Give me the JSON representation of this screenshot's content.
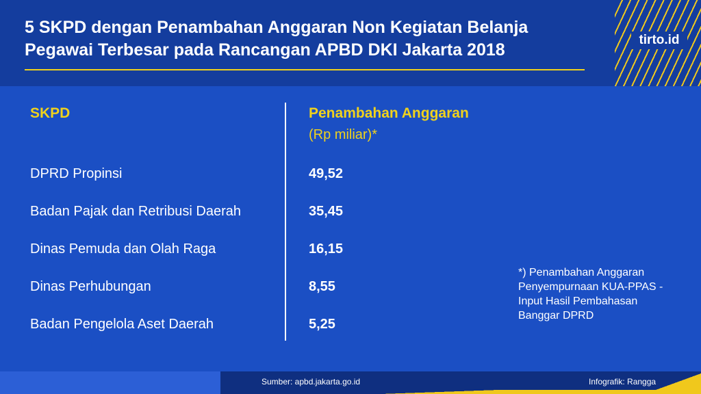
{
  "header": {
    "title_line1": "5 SKPD dengan Penambahan Anggaran Non Kegiatan Belanja",
    "title_line2": "Pegawai Terbesar pada Rancangan APBD DKI Jakarta 2018",
    "logo": "tirto.id"
  },
  "chart_data": {
    "type": "table",
    "title": "5 SKPD dengan Penambahan Anggaran Non Kegiatan Belanja Pegawai Terbesar pada Rancangan APBD DKI Jakarta 2018",
    "columns": [
      "SKPD",
      "Penambahan Anggaran"
    ],
    "column_sub": "(Rp miliar)*",
    "rows": [
      {
        "skpd": "DPRD Propinsi",
        "value": "49,52"
      },
      {
        "skpd": "Badan Pajak dan Retribusi Daerah",
        "value": "35,45"
      },
      {
        "skpd": "Dinas Pemuda dan Olah Raga",
        "value": "16,15"
      },
      {
        "skpd": "Dinas Perhubungan",
        "value": "8,55"
      },
      {
        "skpd": "Badan Pengelola Aset Daerah",
        "value": "5,25"
      }
    ],
    "note_lines": [
      "*) Penambahan Anggaran",
      "Penyempurnaan KUA-PPAS -",
      "Input Hasil Pembahasan",
      "Banggar DPRD"
    ]
  },
  "footer": {
    "source": "Sumber: apbd.jakarta.go.id",
    "credit": "Infografik: Rangga"
  },
  "colors": {
    "background": "#1b4fc4",
    "header": "#143d9e",
    "accent": "#f0d21c",
    "text": "#ffffff"
  }
}
